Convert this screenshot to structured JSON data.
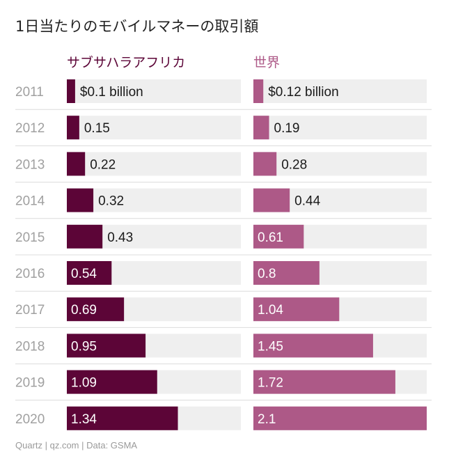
{
  "title": "1日当たりのモバイルマネーの取引額",
  "footer": "Quartz | qz.com | Data: GSMA",
  "colors": {
    "africa": "#5c0537",
    "world": "#ad5987",
    "track": "#efefef",
    "year_text": "#a0a0a0",
    "label_dark": "#1a1a1a",
    "label_light": "#ffffff",
    "separator": "#dcdcdc"
  },
  "chart_data": {
    "type": "bar",
    "title": "1日当たりのモバイルマネーの取引額",
    "categories": [
      "2011",
      "2012",
      "2013",
      "2014",
      "2015",
      "2016",
      "2017",
      "2018",
      "2019",
      "2020"
    ],
    "xlim": [
      0,
      2.1
    ],
    "series": [
      {
        "name": "サブサハラアフリカ",
        "values": [
          0.1,
          0.15,
          0.22,
          0.32,
          0.43,
          0.54,
          0.69,
          0.95,
          1.09,
          1.34
        ],
        "labels": [
          "$0.1 billion",
          "0.15",
          "0.22",
          "0.32",
          "0.43",
          "0.54",
          "0.69",
          "0.95",
          "1.09",
          "1.34"
        ]
      },
      {
        "name": "世界",
        "values": [
          0.12,
          0.19,
          0.28,
          0.44,
          0.61,
          0.8,
          1.04,
          1.45,
          1.72,
          2.1
        ],
        "labels": [
          "$0.12 billion",
          "0.19",
          "0.28",
          "0.44",
          "0.61",
          "0.8",
          "1.04",
          "1.45",
          "1.72",
          "2.1"
        ]
      }
    ]
  }
}
